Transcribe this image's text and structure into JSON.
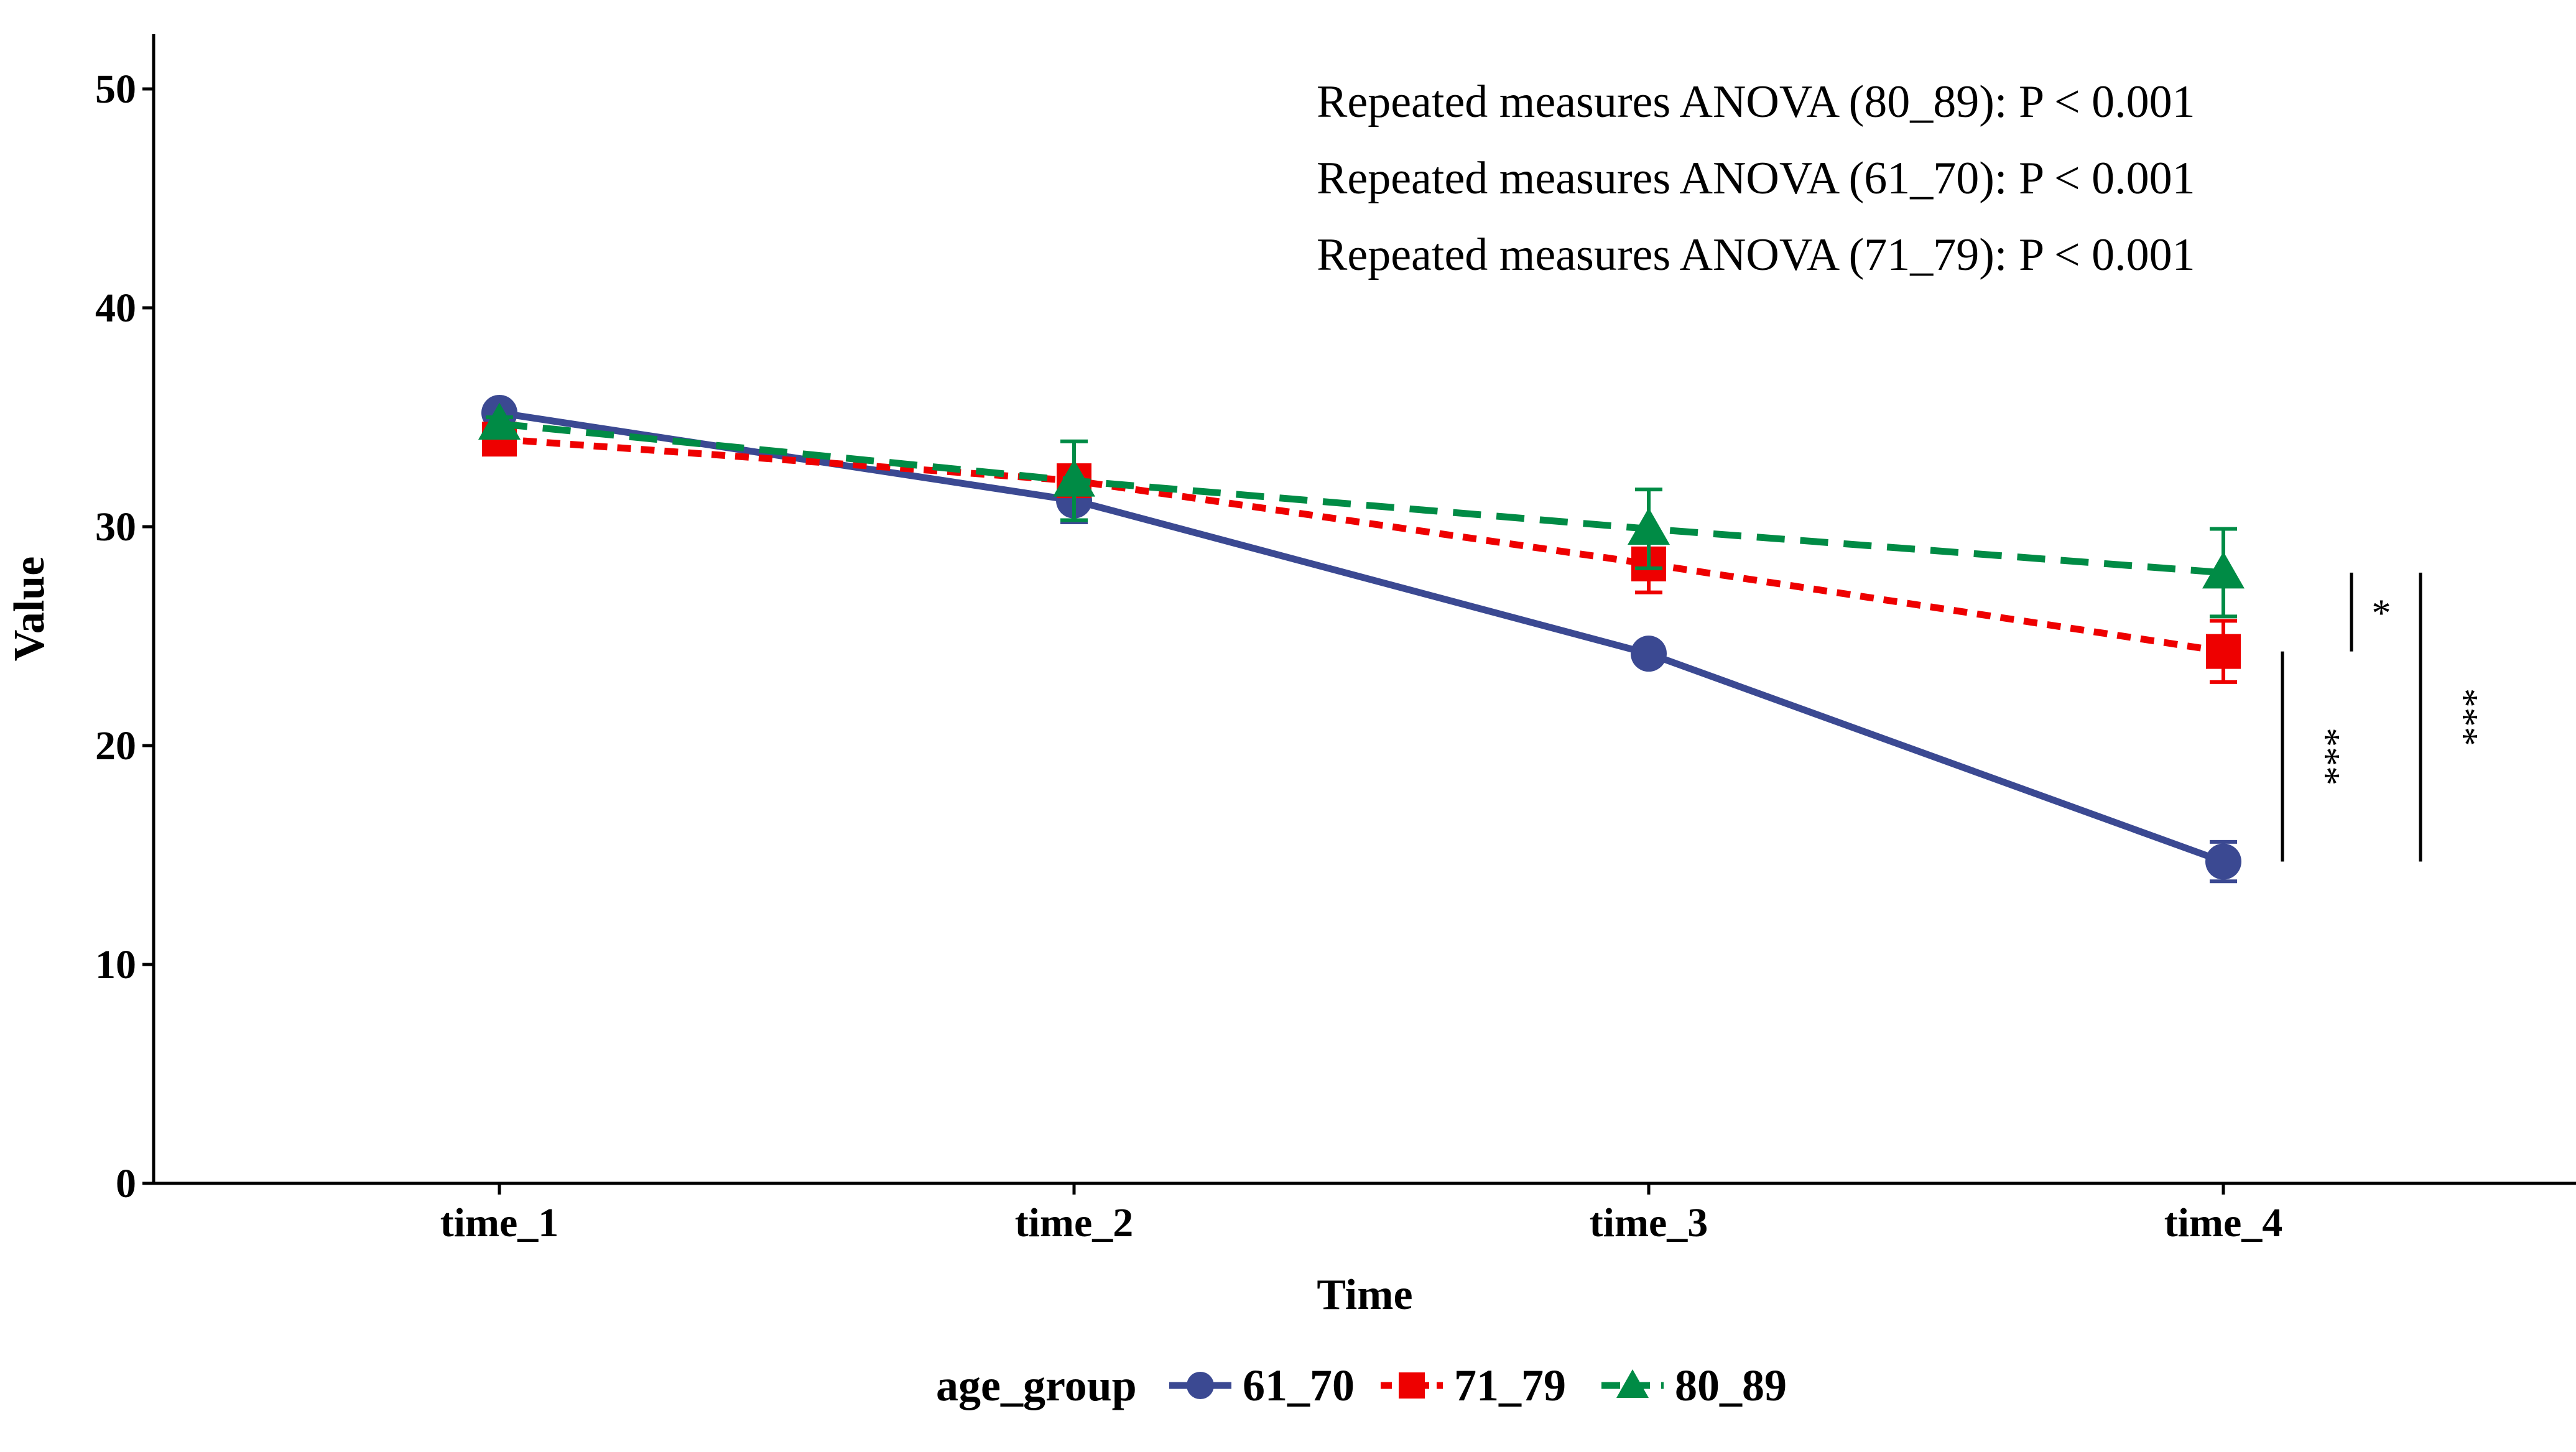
{
  "chart_data": {
    "type": "line",
    "xlabel": "Time",
    "ylabel": "Value",
    "categories": [
      "time_1",
      "time_2",
      "time_3",
      "time_4"
    ],
    "ylim": [
      0,
      52.5
    ],
    "yticks": [
      0,
      10,
      20,
      30,
      40,
      50
    ],
    "grid": false,
    "legend": {
      "position": "bottom",
      "title": "age_group"
    },
    "series": [
      {
        "name": "61_70",
        "values": [
          35.2,
          31.2,
          24.2,
          14.7
        ],
        "errors": [
          0.3,
          1.0,
          0.4,
          0.9
        ],
        "color": "#3B4992",
        "line_style": "solid",
        "marker": "circle"
      },
      {
        "name": "71_79",
        "values": [
          34.0,
          32.1,
          28.3,
          24.3
        ],
        "errors": [
          0.3,
          0.5,
          1.3,
          1.4
        ],
        "color": "#EE0000",
        "line_style": "dotted",
        "marker": "square"
      },
      {
        "name": "80_89",
        "values": [
          34.7,
          32.1,
          29.9,
          27.9
        ],
        "errors": [
          0.3,
          1.8,
          1.8,
          2.0
        ],
        "color": "#008B45",
        "line_style": "dashed",
        "marker": "triangle"
      }
    ],
    "annotations": [
      "Repeated measures ANOVA (80_89): P < 0.001",
      "Repeated measures ANOVA (61_70): P < 0.001",
      "Repeated measures ANOVA (71_79): P < 0.001"
    ],
    "significance": [
      {
        "from": "71_79",
        "to": "80_89",
        "label": "*"
      },
      {
        "from": "61_70",
        "to": "71_79",
        "label": "***"
      },
      {
        "from": "61_70",
        "to": "80_89",
        "label": "***"
      }
    ]
  }
}
